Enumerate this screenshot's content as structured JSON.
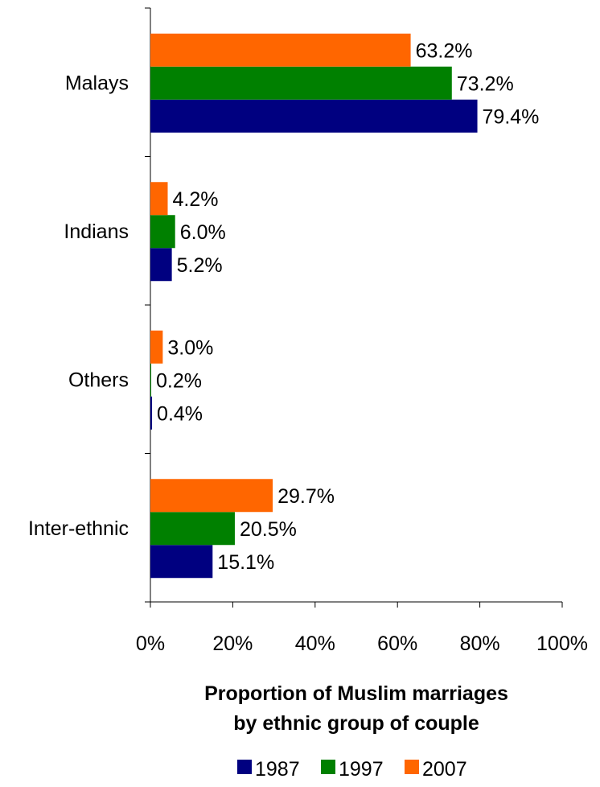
{
  "chart_data": {
    "type": "bar",
    "orientation": "horizontal",
    "categories": [
      "Malays",
      "Indians",
      "Others",
      "Inter-ethnic"
    ],
    "series": [
      {
        "name": "1987",
        "color": "#000080",
        "values": [
          79.4,
          5.2,
          0.4,
          15.1
        ],
        "labels": [
          "79.4%",
          "5.2%",
          "0.4%",
          "15.1%"
        ]
      },
      {
        "name": "1997",
        "color": "#008000",
        "values": [
          73.2,
          6.0,
          0.2,
          20.5
        ],
        "labels": [
          "73.2%",
          "6.0%",
          "0.2%",
          "20.5%"
        ]
      },
      {
        "name": "2007",
        "color": "#FF6600",
        "values": [
          63.2,
          4.2,
          3.0,
          29.7
        ],
        "labels": [
          "63.2%",
          "4.2%",
          "3.0%",
          "29.7%"
        ]
      }
    ],
    "xlim": [
      0,
      100
    ],
    "xticks": [
      0,
      20,
      40,
      60,
      80,
      100
    ],
    "xtick_labels": [
      "0%",
      "20%",
      "40%",
      "60%",
      "80%",
      "100%"
    ],
    "xlabel_lines": [
      "Proportion of Muslim marriages",
      "by ethnic group of couple"
    ],
    "grid": false,
    "legend_position": "bottom"
  }
}
